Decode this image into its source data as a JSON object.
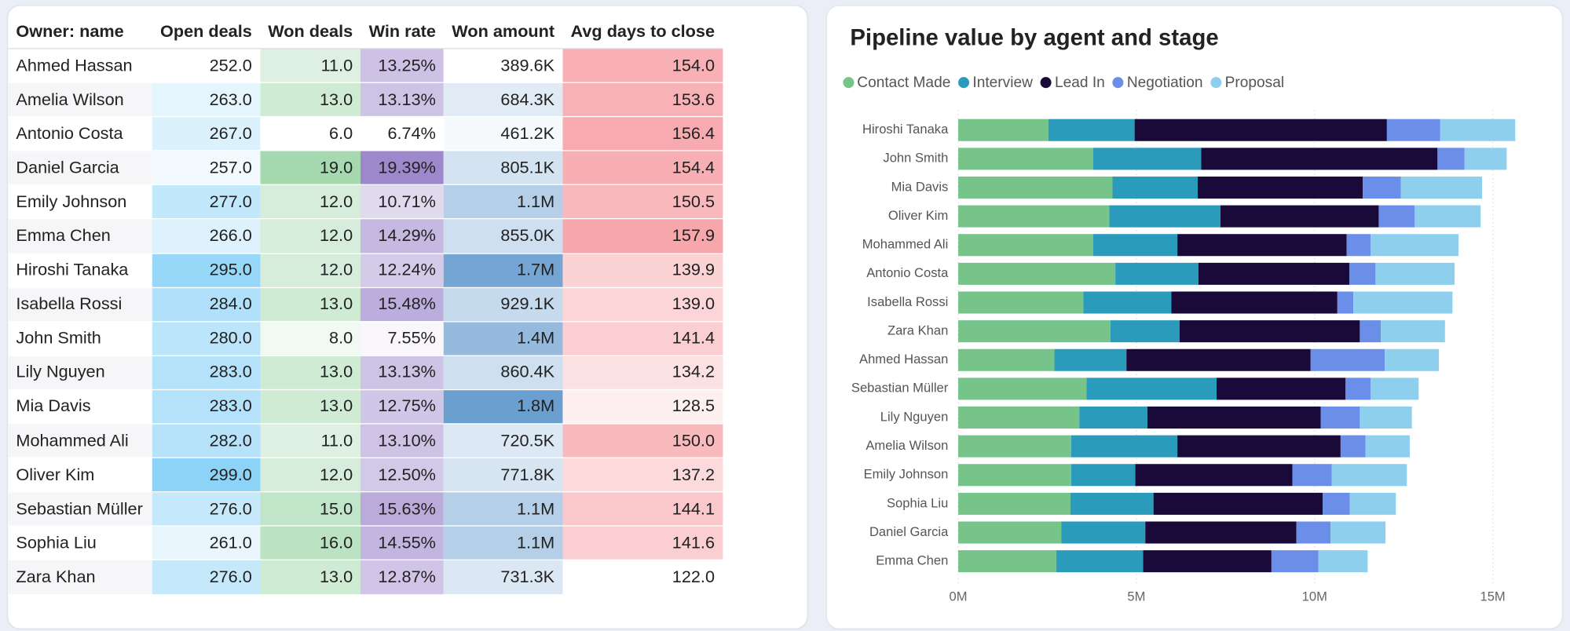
{
  "table": {
    "columns": [
      "Owner: name",
      "Open deals",
      "Won deals",
      "Win rate",
      "Won amount",
      "Avg days to close"
    ],
    "rows": [
      [
        "Ahmed Hassan",
        "252.0",
        "11.0",
        "13.25%",
        "389.6K",
        "154.0"
      ],
      [
        "Amelia Wilson",
        "263.0",
        "13.0",
        "13.13%",
        "684.3K",
        "153.6"
      ],
      [
        "Antonio Costa",
        "267.0",
        "6.0",
        "6.74%",
        "461.2K",
        "156.4"
      ],
      [
        "Daniel Garcia",
        "257.0",
        "19.0",
        "19.39%",
        "805.1K",
        "154.4"
      ],
      [
        "Emily Johnson",
        "277.0",
        "12.0",
        "10.71%",
        "1.1M",
        "150.5"
      ],
      [
        "Emma Chen",
        "266.0",
        "12.0",
        "14.29%",
        "855.0K",
        "157.9"
      ],
      [
        "Hiroshi Tanaka",
        "295.0",
        "12.0",
        "12.24%",
        "1.7M",
        "139.9"
      ],
      [
        "Isabella Rossi",
        "284.0",
        "13.0",
        "15.48%",
        "929.1K",
        "139.0"
      ],
      [
        "John Smith",
        "280.0",
        "8.0",
        "7.55%",
        "1.4M",
        "141.4"
      ],
      [
        "Lily Nguyen",
        "283.0",
        "13.0",
        "13.13%",
        "860.4K",
        "134.2"
      ],
      [
        "Mia Davis",
        "283.0",
        "13.0",
        "12.75%",
        "1.8M",
        "128.5"
      ],
      [
        "Mohammed Ali",
        "282.0",
        "11.0",
        "13.10%",
        "720.5K",
        "150.0"
      ],
      [
        "Oliver Kim",
        "299.0",
        "12.0",
        "12.50%",
        "771.8K",
        "137.2"
      ],
      [
        "Sebastian Müller",
        "276.0",
        "15.0",
        "15.63%",
        "1.1M",
        "144.1"
      ],
      [
        "Sophia Liu",
        "261.0",
        "16.0",
        "14.55%",
        "1.1M",
        "141.6"
      ],
      [
        "Zara Khan",
        "276.0",
        "13.0",
        "12.87%",
        "731.3K",
        "122.0"
      ]
    ],
    "column_colors": [
      null,
      "#8dd3f7",
      "#a6d9b0",
      "#9d88cc",
      "#6b9fd0",
      "#f7a6ab"
    ]
  },
  "chart_data": {
    "type": "stacked_bar_horizontal",
    "title": "Pipeline value by agent and stage",
    "categories": [
      "Hiroshi Tanaka",
      "John Smith",
      "Mia Davis",
      "Oliver Kim",
      "Mohammed Ali",
      "Antonio Costa",
      "Isabella Rossi",
      "Zara Khan",
      "Ahmed Hassan",
      "Sebastian Müller",
      "Lily Nguyen",
      "Amelia Wilson",
      "Emily Johnson",
      "Sophia Liu",
      "Daniel Garcia",
      "Emma Chen"
    ],
    "series": [
      {
        "name": "Contact Made",
        "color": "#77c48a",
        "values": [
          2.53,
          3.79,
          4.33,
          4.24,
          3.79,
          4.41,
          3.51,
          4.27,
          2.7,
          3.6,
          3.4,
          3.17,
          3.17,
          3.15,
          2.89,
          2.75
        ]
      },
      {
        "name": "Interview",
        "color": "#2b9bbb",
        "values": [
          2.42,
          3.03,
          2.39,
          3.12,
          2.36,
          2.33,
          2.47,
          1.94,
          2.02,
          3.65,
          1.91,
          2.98,
          1.8,
          2.33,
          2.36,
          2.44
        ]
      },
      {
        "name": "Lead In",
        "color": "#1a0a3a",
        "values": [
          7.08,
          6.63,
          4.63,
          4.44,
          4.75,
          4.24,
          4.66,
          5.06,
          5.17,
          3.62,
          4.86,
          4.58,
          4.41,
          4.75,
          4.24,
          3.6
        ]
      },
      {
        "name": "Negotiation",
        "color": "#6b8ee8",
        "values": [
          1.49,
          0.76,
          1.07,
          1.01,
          0.67,
          0.73,
          0.45,
          0.59,
          2.08,
          0.7,
          1.1,
          0.7,
          1.1,
          0.76,
          0.96,
          1.32
        ]
      },
      {
        "name": "Proposal",
        "color": "#8ecfee",
        "values": [
          2.11,
          1.18,
          2.28,
          1.85,
          2.47,
          2.22,
          2.78,
          1.8,
          1.52,
          1.35,
          1.46,
          1.24,
          2.11,
          1.29,
          1.54,
          1.38
        ]
      }
    ],
    "xlim": [
      0,
      16.1
    ],
    "xticks": [
      {
        "value": 0,
        "label": "0M"
      },
      {
        "value": 5,
        "label": "5M"
      },
      {
        "value": 10,
        "label": "10M"
      },
      {
        "value": 15,
        "label": "15M"
      }
    ],
    "grid": true
  }
}
